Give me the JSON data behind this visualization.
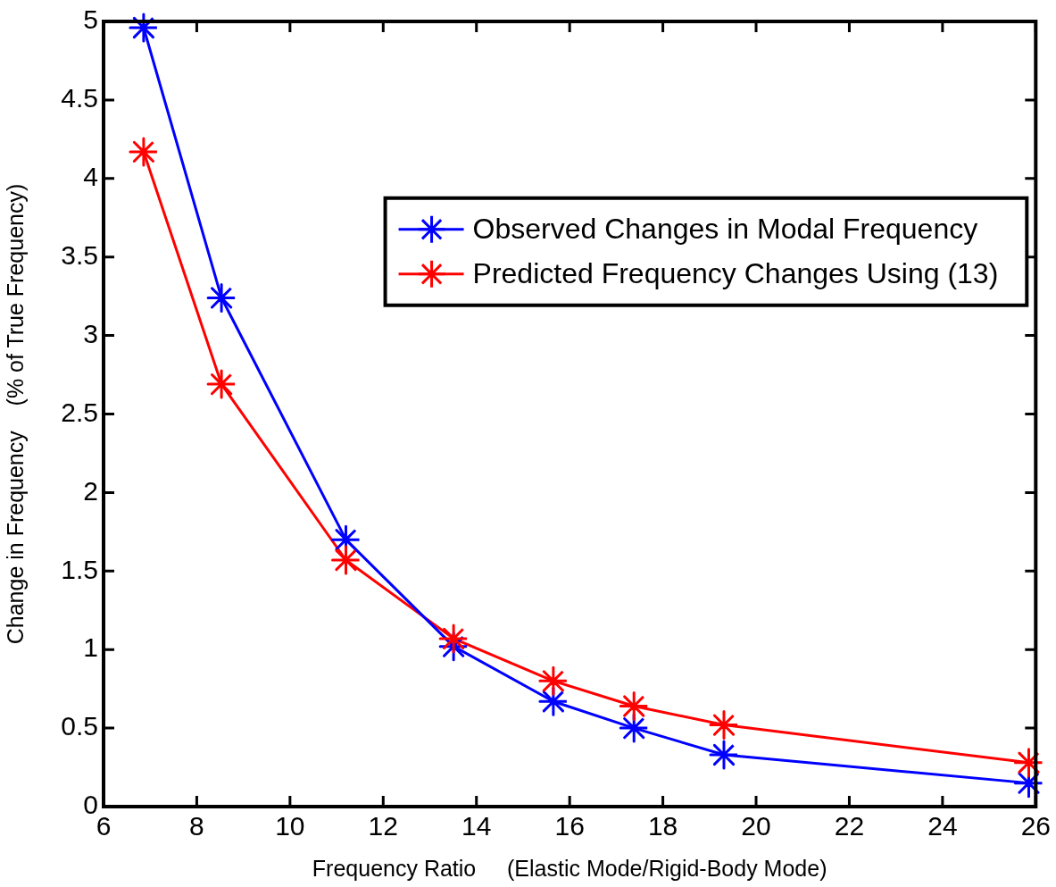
{
  "chart_data": {
    "type": "line",
    "xlabel": "Frequency Ratio     (Elastic Mode/Rigid-Body Mode)",
    "ylabel": "Change in Frequency    (% of True Frequency)",
    "x": [
      6.86,
      8.53,
      11.2,
      13.51,
      15.65,
      17.38,
      19.31,
      25.85
    ],
    "series": [
      {
        "name": "Observed Changes in Modal Frequency",
        "color": "#0000ff",
        "values": [
          4.96,
          3.24,
          1.7,
          1.02,
          0.67,
          0.5,
          0.33,
          0.15
        ]
      },
      {
        "name": "Predicted Frequency Changes Using (13)",
        "color": "#ff0000",
        "values": [
          4.17,
          2.69,
          1.57,
          1.07,
          0.8,
          0.64,
          0.52,
          0.28
        ]
      }
    ],
    "xlim": [
      6,
      26
    ],
    "xticks": [
      6,
      8,
      10,
      12,
      14,
      16,
      18,
      20,
      22,
      24,
      26
    ],
    "ylim": [
      0,
      5
    ],
    "yticks": [
      0,
      0.5,
      1,
      1.5,
      2,
      2.5,
      3,
      3.5,
      4,
      4.5,
      5
    ],
    "grid": false,
    "legend": "top right",
    "marker": "cross",
    "line_style": "solid"
  }
}
